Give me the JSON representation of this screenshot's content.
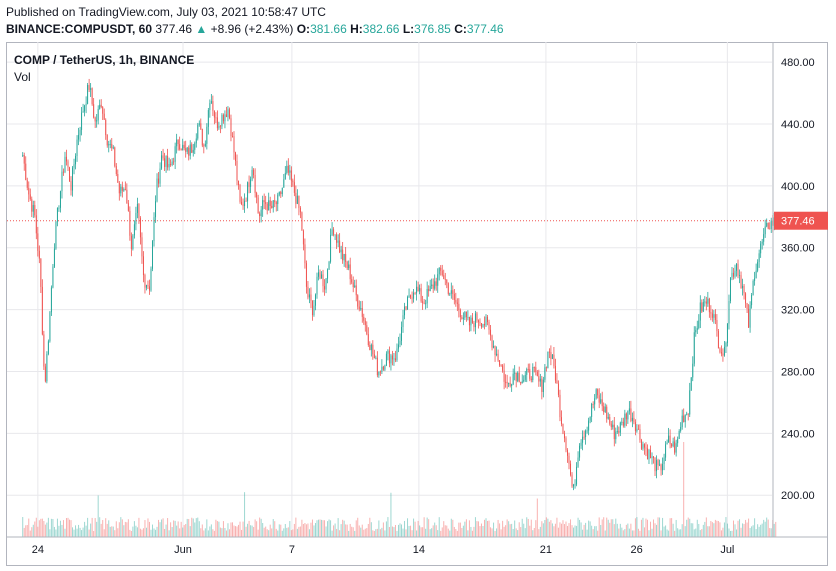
{
  "header": {
    "published": "Published on TradingView.com, July 03, 2021 10:58:47 UTC",
    "symbol": "BINANCE:COMPUSDT, 60",
    "last": "377.46",
    "change_arrow": "▲",
    "change": "+8.96 (+2.43%)",
    "o_label": "O:",
    "o_value": "381.66",
    "h_label": "H:",
    "h_value": "382.66",
    "l_label": "L:",
    "l_value": "376.85",
    "c_label": "C:",
    "c_value": "377.46"
  },
  "legend": {
    "pair": "COMP / TetherUS, 1h, BINANCE",
    "volume": "Vol"
  },
  "colors": {
    "up": "#26a69a",
    "down": "#ef5350",
    "grid": "#e8e8ec",
    "last_price": "#ef5350",
    "axis_text": "#131722"
  },
  "chart_data": {
    "type": "candlestick",
    "title": "COMP / TetherUS, 1h, BINANCE",
    "y_axis_side": "right",
    "ylim": [
      173,
      493
    ],
    "y_ticks": [
      "480.00",
      "440.00",
      "400.00",
      "360.00",
      "320.00",
      "280.00",
      "240.00",
      "200.00"
    ],
    "x_ticks": [
      "24",
      "Jun",
      "7",
      "14",
      "21",
      "26",
      "Jul"
    ],
    "last_price": 377.46,
    "last_price_label": "377.46",
    "grid": true,
    "volume_pane": true,
    "price_path": [
      [
        "May 23",
        420
      ],
      [
        "May 23",
        395
      ],
      [
        "May 23",
        380
      ],
      [
        "May 24",
        345
      ],
      [
        "May 24",
        270
      ],
      [
        "May 24",
        310
      ],
      [
        "May 24",
        360
      ],
      [
        "May 25",
        390
      ],
      [
        "May 25",
        420
      ],
      [
        "May 25",
        400
      ],
      [
        "May 26",
        430
      ],
      [
        "May 26",
        450
      ],
      [
        "May 26",
        465
      ],
      [
        "May 27",
        440
      ],
      [
        "May 27",
        455
      ],
      [
        "May 27",
        430
      ],
      [
        "May 28",
        420
      ],
      [
        "May 28",
        395
      ],
      [
        "May 28",
        400
      ],
      [
        "May 29",
        360
      ],
      [
        "May 29",
        385
      ],
      [
        "May 29",
        340
      ],
      [
        "May 30",
        335
      ],
      [
        "May 30",
        395
      ],
      [
        "May 30",
        420
      ],
      [
        "May 31",
        410
      ],
      [
        "May 31",
        430
      ],
      [
        "Jun 1",
        420
      ],
      [
        "Jun 1",
        425
      ],
      [
        "Jun 1",
        440
      ],
      [
        "Jun 2",
        425
      ],
      [
        "Jun 2",
        460
      ],
      [
        "Jun 2",
        440
      ],
      [
        "Jun 3",
        445
      ],
      [
        "Jun 3",
        450
      ],
      [
        "Jun 3",
        420
      ],
      [
        "Jun 4",
        385
      ],
      [
        "Jun 4",
        395
      ],
      [
        "Jun 4",
        415
      ],
      [
        "Jun 5",
        380
      ],
      [
        "Jun 5",
        390
      ],
      [
        "Jun 5",
        385
      ],
      [
        "Jun 6",
        390
      ],
      [
        "Jun 6",
        410
      ],
      [
        "Jun 7",
        395
      ],
      [
        "Jun 7",
        380
      ],
      [
        "Jun 7",
        330
      ],
      [
        "Jun 8",
        320
      ],
      [
        "Jun 8",
        345
      ],
      [
        "Jun 8",
        335
      ],
      [
        "Jun 9",
        375
      ],
      [
        "Jun 9",
        355
      ],
      [
        "Jun 10",
        345
      ],
      [
        "Jun 10",
        330
      ],
      [
        "Jun 10",
        320
      ],
      [
        "Jun 11",
        300
      ],
      [
        "Jun 11",
        280
      ],
      [
        "Jun 12",
        290
      ],
      [
        "Jun 12",
        290
      ],
      [
        "Jun 13",
        320
      ],
      [
        "Jun 13",
        335
      ],
      [
        "Jun 14",
        325
      ],
      [
        "Jun 14",
        335
      ],
      [
        "Jun 15",
        345
      ],
      [
        "Jun 15",
        330
      ],
      [
        "Jun 16",
        320
      ],
      [
        "Jun 16",
        310
      ],
      [
        "Jun 17",
        315
      ],
      [
        "Jun 17",
        310
      ],
      [
        "Jun 18",
        295
      ],
      [
        "Jun 18",
        285
      ],
      [
        "Jun 18",
        270
      ],
      [
        "Jun 19",
        280
      ],
      [
        "Jun 19",
        275
      ],
      [
        "Jun 20",
        280
      ],
      [
        "Jun 20",
        270
      ],
      [
        "Jun 21",
        295
      ],
      [
        "Jun 21",
        280
      ],
      [
        "Jun 21",
        250
      ],
      [
        "Jun 22",
        230
      ],
      [
        "Jun 22",
        200
      ],
      [
        "Jun 22",
        235
      ],
      [
        "Jun 23",
        245
      ],
      [
        "Jun 23",
        265
      ],
      [
        "Jun 24",
        255
      ],
      [
        "Jun 24",
        240
      ],
      [
        "Jun 25",
        245
      ],
      [
        "Jun 25",
        255
      ],
      [
        "Jun 25",
        250
      ],
      [
        "Jun 26",
        235
      ],
      [
        "Jun 26",
        225
      ],
      [
        "Jun 27",
        215
      ],
      [
        "Jun 27",
        235
      ],
      [
        "Jun 28",
        230
      ],
      [
        "Jun 28",
        250
      ],
      [
        "Jun 28",
        255
      ],
      [
        "Jun 29",
        300
      ],
      [
        "Jun 29",
        320
      ],
      [
        "Jun 29",
        325
      ],
      [
        "Jun 30",
        320
      ],
      [
        "Jun 30",
        300
      ],
      [
        "Jun 30",
        290
      ],
      [
        "Jul 1",
        340
      ],
      [
        "Jul 1",
        350
      ],
      [
        "Jul 1",
        335
      ],
      [
        "Jul 2",
        310
      ],
      [
        "Jul 2",
        345
      ],
      [
        "Jul 2",
        360
      ],
      [
        "Jul 3",
        375
      ],
      [
        "Jul 3",
        377.46
      ]
    ]
  }
}
